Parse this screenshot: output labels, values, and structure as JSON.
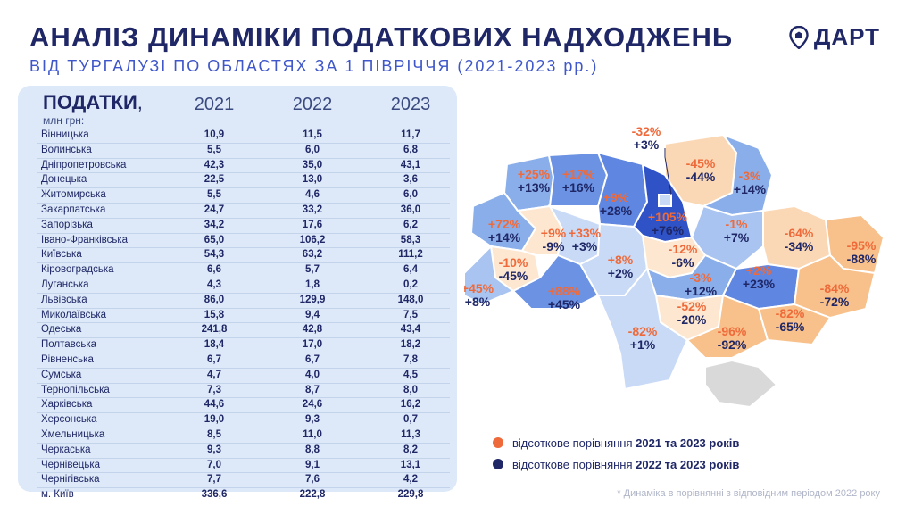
{
  "header": {
    "title": "АНАЛІЗ ДИНАМІКИ ПОДАТКОВИХ НАДХОДЖЕНЬ",
    "subtitle": "ВІД ТУРГАЛУЗІ ПО ОБЛАСТЯХ ЗА 1 ПІВРІЧЧЯ (2021-2023 рр.)",
    "logo_text": "ДАРТ",
    "logo_icon": "map-pin-icon"
  },
  "colors": {
    "orange": "#ef6a3a",
    "navy": "#1f2766",
    "panel": "#dde9f8"
  },
  "legend": {
    "item1_prefix": "відсоткове порівняння ",
    "item1_bold": "2021 та 2023 років",
    "item2_prefix": "відсоткове порівняння ",
    "item2_bold": "2022 та 2023 років"
  },
  "footnote": "* Динаміка в порівнянні з відповідним періодом 2022 року",
  "chart_data": {
    "type": "table",
    "header_label": "ПОДАТКИ",
    "header_comma": ",",
    "unit": "млн грн:",
    "years": [
      "2021",
      "2022",
      "2023"
    ],
    "rows": [
      {
        "region": "Вінницька",
        "values": [
          "10,9",
          "11,5",
          "11,7"
        ]
      },
      {
        "region": "Волинська",
        "values": [
          "5,5",
          "6,0",
          "6,8"
        ]
      },
      {
        "region": "Дніпропетровська",
        "values": [
          "42,3",
          "35,0",
          "43,1"
        ]
      },
      {
        "region": "Донецька",
        "values": [
          "22,5",
          "13,0",
          "3,6"
        ]
      },
      {
        "region": "Житомирська",
        "values": [
          "5,5",
          "4,6",
          "6,0"
        ]
      },
      {
        "region": "Закарпатська",
        "values": [
          "24,7",
          "33,2",
          "36,0"
        ]
      },
      {
        "region": "Запорізька",
        "values": [
          "34,2",
          "17,6",
          "6,2"
        ]
      },
      {
        "region": "Івано-Франківська",
        "values": [
          "65,0",
          "106,2",
          "58,3"
        ]
      },
      {
        "region": "Київська",
        "values": [
          "54,3",
          "63,2",
          "111,2"
        ]
      },
      {
        "region": "Кіровоградська",
        "values": [
          "6,6",
          "5,7",
          "6,4"
        ]
      },
      {
        "region": "Луганська",
        "values": [
          "4,3",
          "1,8",
          "0,2"
        ]
      },
      {
        "region": "Львівська",
        "values": [
          "86,0",
          "129,9",
          "148,0"
        ]
      },
      {
        "region": "Миколаївська",
        "values": [
          "15,8",
          "9,4",
          "7,5"
        ]
      },
      {
        "region": "Одеська",
        "values": [
          "241,8",
          "42,8",
          "43,4"
        ]
      },
      {
        "region": "Полтавська",
        "values": [
          "18,4",
          "17,0",
          "18,2"
        ]
      },
      {
        "region": "Рівненська",
        "values": [
          "6,7",
          "6,7",
          "7,8"
        ]
      },
      {
        "region": "Сумська",
        "values": [
          "4,7",
          "4,0",
          "4,5"
        ]
      },
      {
        "region": "Тернопільська",
        "values": [
          "7,3",
          "8,7",
          "8,0"
        ]
      },
      {
        "region": "Харківська",
        "values": [
          "44,6",
          "24,6",
          "16,2"
        ]
      },
      {
        "region": "Херсонська",
        "values": [
          "19,0",
          "9,3",
          "0,7"
        ]
      },
      {
        "region": "Хмельницька",
        "values": [
          "8,5",
          "11,0",
          "11,3"
        ]
      },
      {
        "region": "Черкаська",
        "values": [
          "9,3",
          "8,8",
          "8,2"
        ]
      },
      {
        "region": "Чернівецька",
        "values": [
          "7,0",
          "9,1",
          "13,1"
        ]
      },
      {
        "region": "Чернігівська",
        "values": [
          "7,7",
          "7,6",
          "4,2"
        ]
      },
      {
        "region": "м. Київ",
        "values": [
          "336,6",
          "222,8",
          "229,8"
        ]
      }
    ],
    "map_labels": [
      {
        "region": "Волинська",
        "a": "+25%",
        "b": "+13%",
        "color": "#8aaeea"
      },
      {
        "region": "Рівненська",
        "a": "+17%",
        "b": "+16%",
        "color": "#6b92e3"
      },
      {
        "region": "Житомирська",
        "a": "+9%",
        "b": "+28%",
        "color": "#5f86e0"
      },
      {
        "region": "Київська",
        "a": "+105%",
        "b": "+76%",
        "color": "#2f52c7"
      },
      {
        "region": "м. Київ",
        "a": "-32%",
        "b": "+3%",
        "color": "#c9daf7"
      },
      {
        "region": "Чернігівська",
        "a": "-45%",
        "b": "-44%",
        "color": "#fbd8b5"
      },
      {
        "region": "Сумська",
        "a": "-3%",
        "b": "+14%",
        "color": "#8aaeea"
      },
      {
        "region": "Львівська",
        "a": "+72%",
        "b": "+14%",
        "color": "#8aaeea"
      },
      {
        "region": "Тернопільська",
        "a": "+9%",
        "b": "-9%",
        "color": "#fde7d0"
      },
      {
        "region": "Хмельницька",
        "a": "+33%",
        "b": "+3%",
        "color": "#c9daf7"
      },
      {
        "region": "Вінницька",
        "a": "+8%",
        "b": "+2%",
        "color": "#c9daf7"
      },
      {
        "region": "Черкаська",
        "a": "-12%",
        "b": "-6%",
        "color": "#fde7d0"
      },
      {
        "region": "Полтавська",
        "a": "-1%",
        "b": "+7%",
        "color": "#a9c4f0"
      },
      {
        "region": "Харківська",
        "a": "-64%",
        "b": "-34%",
        "color": "#fbd8b5"
      },
      {
        "region": "Луганська",
        "a": "-95%",
        "b": "-88%",
        "color": "#f8c08a"
      },
      {
        "region": "Івано-Франківська",
        "a": "-10%",
        "b": "-45%",
        "color": "#fde7d0"
      },
      {
        "region": "Закарпатська",
        "a": "+45%",
        "b": "+8%",
        "color": "#a9c4f0"
      },
      {
        "region": "Чернівецька",
        "a": "+88%",
        "b": "+45%",
        "color": "#6b92e3"
      },
      {
        "region": "Кіровоградська",
        "a": "-3%",
        "b": "+12%",
        "color": "#8aaeea"
      },
      {
        "region": "Дніпропетровська",
        "a": "+2%",
        "b": "+23%",
        "color": "#5f86e0"
      },
      {
        "region": "Донецька",
        "a": "-84%",
        "b": "-72%",
        "color": "#f8c08a"
      },
      {
        "region": "Миколаївська",
        "a": "-52%",
        "b": "-20%",
        "color": "#fde7d0"
      },
      {
        "region": "Одеська",
        "a": "-82%",
        "b": "+1%",
        "color": "#c9daf7"
      },
      {
        "region": "Херсонська",
        "a": "-96%",
        "b": "-92%",
        "color": "#f8c08a"
      },
      {
        "region": "Запорізька",
        "a": "-82%",
        "b": "-65%",
        "color": "#f8c08a"
      }
    ]
  }
}
